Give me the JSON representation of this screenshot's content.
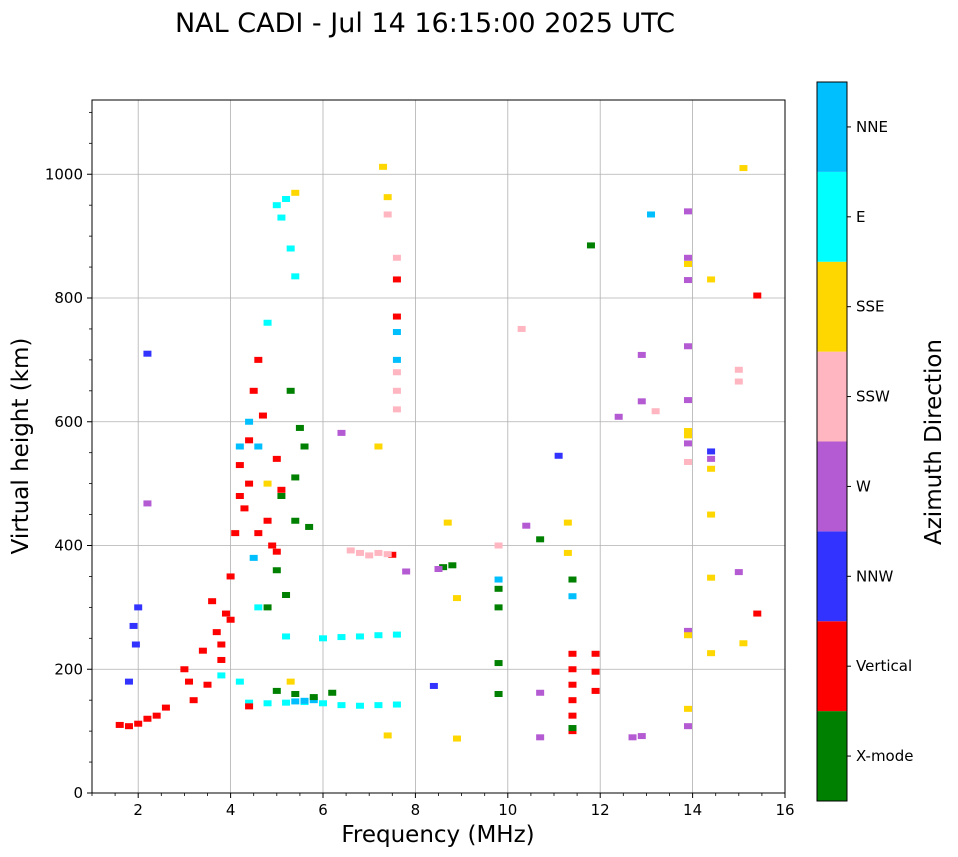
{
  "chart_data": {
    "type": "scatter",
    "title": "NAL CADI - Jul 14 16:15:00 2025 UTC",
    "xlabel": "Frequency (MHz)",
    "ylabel": "Virtual height (km)",
    "xlim": [
      1,
      16
    ],
    "ylim": [
      0,
      1120
    ],
    "xticks": [
      2,
      4,
      6,
      8,
      10,
      12,
      14,
      16
    ],
    "yticks": [
      0,
      200,
      400,
      600,
      800,
      1000
    ],
    "grid": true,
    "colorbar": {
      "label": "Azimuth Direction",
      "categories": [
        {
          "name": "X-mode",
          "color": "#008000"
        },
        {
          "name": "Vertical",
          "color": "#ff0000"
        },
        {
          "name": "NNW",
          "color": "#3333ff"
        },
        {
          "name": "W",
          "color": "#b45ad2"
        },
        {
          "name": "SSW",
          "color": "#ffb6c1"
        },
        {
          "name": "SSE",
          "color": "#ffd700"
        },
        {
          "name": "E",
          "color": "#00ffff"
        },
        {
          "name": "NNE",
          "color": "#00bfff"
        }
      ]
    },
    "series": [
      {
        "name": "E",
        "points": [
          [
            4.4,
            146
          ],
          [
            4.8,
            145
          ],
          [
            5.2,
            146
          ],
          [
            5.6,
            147
          ],
          [
            6.0,
            145
          ],
          [
            6.4,
            142
          ],
          [
            6.8,
            141
          ],
          [
            7.2,
            142
          ],
          [
            7.6,
            143
          ],
          [
            5.2,
            253
          ],
          [
            6.0,
            250
          ],
          [
            6.4,
            252
          ],
          [
            6.8,
            253
          ],
          [
            7.2,
            255
          ],
          [
            7.6,
            256
          ],
          [
            4.8,
            760
          ],
          [
            5.0,
            950
          ],
          [
            5.1,
            930
          ],
          [
            5.3,
            880
          ],
          [
            5.4,
            835
          ],
          [
            5.2,
            960
          ],
          [
            4.6,
            300
          ],
          [
            3.8,
            190
          ],
          [
            4.2,
            180
          ]
        ]
      },
      {
        "name": "NNE",
        "points": [
          [
            5.4,
            148
          ],
          [
            5.6,
            149
          ],
          [
            5.8,
            150
          ],
          [
            4.6,
            560
          ],
          [
            4.4,
            600
          ],
          [
            4.5,
            380
          ],
          [
            7.6,
            745
          ],
          [
            7.6,
            700
          ],
          [
            9.8,
            345
          ],
          [
            11.4,
            318
          ],
          [
            13.1,
            935
          ],
          [
            4.2,
            560
          ]
        ]
      },
      {
        "name": "Vertical",
        "points": [
          [
            1.6,
            110
          ],
          [
            1.8,
            108
          ],
          [
            2.0,
            112
          ],
          [
            2.2,
            120
          ],
          [
            2.4,
            125
          ],
          [
            2.6,
            138
          ],
          [
            3.0,
            200
          ],
          [
            3.1,
            180
          ],
          [
            3.2,
            150
          ],
          [
            3.4,
            230
          ],
          [
            3.5,
            175
          ],
          [
            3.6,
            310
          ],
          [
            3.7,
            260
          ],
          [
            3.8,
            240
          ],
          [
            3.8,
            215
          ],
          [
            3.9,
            290
          ],
          [
            4.0,
            350
          ],
          [
            4.0,
            280
          ],
          [
            4.1,
            420
          ],
          [
            4.2,
            480
          ],
          [
            4.2,
            530
          ],
          [
            4.3,
            460
          ],
          [
            4.4,
            500
          ],
          [
            4.4,
            570
          ],
          [
            4.5,
            650
          ],
          [
            4.6,
            700
          ],
          [
            4.6,
            420
          ],
          [
            4.7,
            610
          ],
          [
            4.8,
            440
          ],
          [
            4.9,
            400
          ],
          [
            5.0,
            390
          ],
          [
            5.1,
            490
          ],
          [
            5.0,
            540
          ],
          [
            4.4,
            140
          ],
          [
            7.6,
            770
          ],
          [
            7.6,
            830
          ],
          [
            7.5,
            385
          ],
          [
            11.4,
            225
          ],
          [
            11.4,
            200
          ],
          [
            11.4,
            175
          ],
          [
            11.4,
            150
          ],
          [
            11.4,
            125
          ],
          [
            11.4,
            100
          ],
          [
            11.9,
            225
          ],
          [
            11.9,
            196
          ],
          [
            11.9,
            165
          ],
          [
            15.4,
            804
          ],
          [
            15.4,
            290
          ]
        ]
      },
      {
        "name": "X-mode",
        "points": [
          [
            5.0,
            165
          ],
          [
            5.4,
            160
          ],
          [
            5.8,
            155
          ],
          [
            6.2,
            162
          ],
          [
            5.1,
            480
          ],
          [
            5.4,
            510
          ],
          [
            5.6,
            560
          ],
          [
            5.4,
            440
          ],
          [
            5.7,
            430
          ],
          [
            5.5,
            590
          ],
          [
            5.3,
            650
          ],
          [
            5.0,
            360
          ],
          [
            5.2,
            320
          ],
          [
            4.8,
            300
          ],
          [
            8.6,
            365
          ],
          [
            8.8,
            368
          ],
          [
            9.8,
            330
          ],
          [
            9.8,
            300
          ],
          [
            9.8,
            210
          ],
          [
            9.8,
            160
          ],
          [
            10.7,
            410
          ],
          [
            11.4,
            345
          ],
          [
            11.8,
            885
          ],
          [
            11.4,
            105
          ]
        ]
      },
      {
        "name": "NNW",
        "points": [
          [
            2.2,
            710
          ],
          [
            1.9,
            270
          ],
          [
            1.95,
            240
          ],
          [
            2.0,
            300
          ],
          [
            1.8,
            180
          ],
          [
            8.4,
            173
          ],
          [
            11.1,
            545
          ],
          [
            14.4,
            552
          ]
        ]
      },
      {
        "name": "W",
        "points": [
          [
            8.5,
            362
          ],
          [
            7.8,
            358
          ],
          [
            6.4,
            582
          ],
          [
            10.4,
            432
          ],
          [
            10.7,
            162
          ],
          [
            10.7,
            90
          ],
          [
            12.4,
            608
          ],
          [
            12.7,
            90
          ],
          [
            12.9,
            92
          ],
          [
            12.9,
            708
          ],
          [
            12.9,
            633
          ],
          [
            13.9,
            940
          ],
          [
            13.9,
            865
          ],
          [
            13.9,
            829
          ],
          [
            13.9,
            722
          ],
          [
            13.9,
            635
          ],
          [
            13.9,
            565
          ],
          [
            13.9,
            108
          ],
          [
            13.9,
            262
          ],
          [
            14.4,
            540
          ],
          [
            15.0,
            357
          ],
          [
            2.2,
            468
          ]
        ]
      },
      {
        "name": "SSW",
        "points": [
          [
            6.6,
            392
          ],
          [
            6.8,
            388
          ],
          [
            7.0,
            384
          ],
          [
            7.2,
            388
          ],
          [
            7.4,
            386
          ],
          [
            7.6,
            680
          ],
          [
            7.6,
            650
          ],
          [
            7.6,
            620
          ],
          [
            7.6,
            865
          ],
          [
            7.4,
            935
          ],
          [
            10.3,
            750
          ],
          [
            13.2,
            617
          ],
          [
            15.0,
            684
          ],
          [
            15.0,
            665
          ],
          [
            13.9,
            535
          ],
          [
            9.8,
            400
          ]
        ]
      },
      {
        "name": "SSE",
        "points": [
          [
            7.3,
            1012
          ],
          [
            7.4,
            963
          ],
          [
            7.2,
            560
          ],
          [
            5.4,
            970
          ],
          [
            5.3,
            180
          ],
          [
            8.7,
            437
          ],
          [
            8.9,
            88
          ],
          [
            8.9,
            315
          ],
          [
            11.3,
            437
          ],
          [
            11.3,
            388
          ],
          [
            13.9,
            585
          ],
          [
            13.9,
            578
          ],
          [
            13.9,
            255
          ],
          [
            13.9,
            136
          ],
          [
            14.4,
            830
          ],
          [
            14.4,
            524
          ],
          [
            14.4,
            450
          ],
          [
            14.4,
            348
          ],
          [
            14.4,
            226
          ],
          [
            13.9,
            855
          ],
          [
            15.1,
            1010
          ],
          [
            15.1,
            242
          ],
          [
            7.4,
            93
          ],
          [
            4.8,
            500
          ]
        ]
      }
    ]
  }
}
